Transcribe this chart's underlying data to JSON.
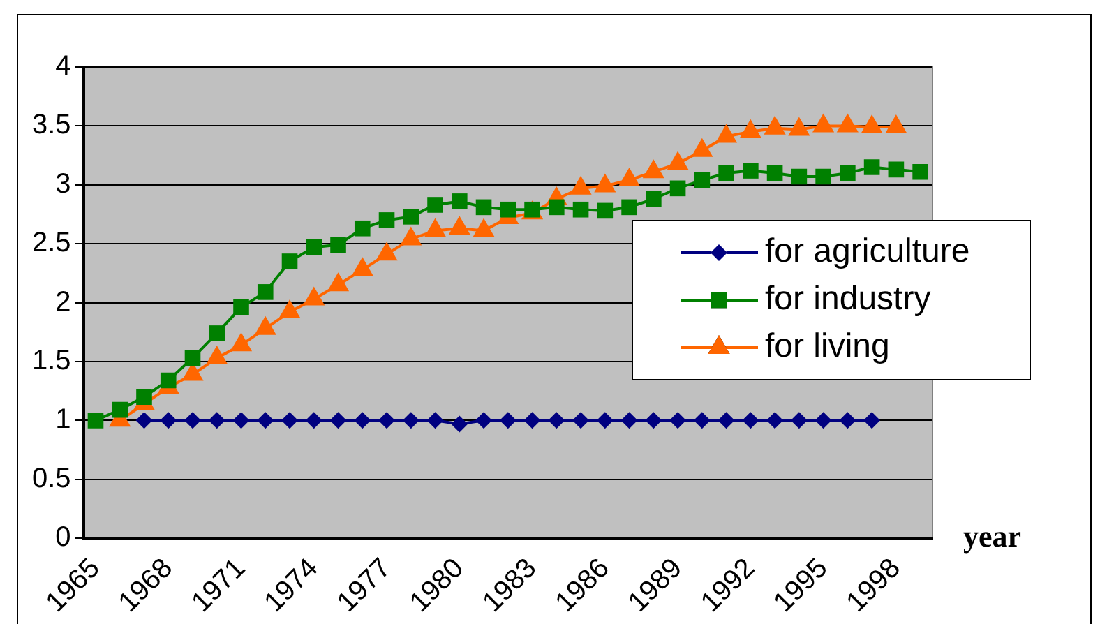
{
  "chart_data": {
    "type": "line",
    "xlabel": "year",
    "categories": [
      "1965",
      null,
      null,
      "1968",
      null,
      null,
      "1971",
      null,
      null,
      "1974",
      null,
      null,
      "1977",
      null,
      null,
      "1980",
      null,
      null,
      "1983",
      null,
      null,
      "1986",
      null,
      null,
      "1989",
      null,
      null,
      "1992",
      null,
      null,
      "1995",
      null,
      null,
      "1998",
      null
    ],
    "series": [
      {
        "name": "for agriculture",
        "color": "#000080",
        "marker": "diamond",
        "values": [
          null,
          null,
          1,
          1,
          1,
          1,
          1,
          1,
          1,
          1,
          1,
          1,
          1,
          1,
          1,
          0.97,
          1,
          1,
          1,
          1,
          1,
          1,
          1,
          1,
          1,
          1,
          1,
          1,
          1,
          1,
          1,
          1,
          1,
          null,
          null
        ]
      },
      {
        "name": "for industry",
        "color": "#008000",
        "marker": "square",
        "values": [
          1,
          1.09,
          1.2,
          1.34,
          1.53,
          1.74,
          1.96,
          2.09,
          2.35,
          2.47,
          2.49,
          2.63,
          2.7,
          2.73,
          2.83,
          2.86,
          2.81,
          2.79,
          2.79,
          2.81,
          2.79,
          2.78,
          2.81,
          2.88,
          2.97,
          3.04,
          3.1,
          3.12,
          3.1,
          3.07,
          3.07,
          3.1,
          3.15,
          3.13,
          3.11
        ]
      },
      {
        "name": "for living",
        "color": "#ff6600",
        "marker": "triangle",
        "values": [
          null,
          1,
          1.14,
          1.28,
          1.39,
          1.53,
          1.64,
          1.78,
          1.92,
          2.03,
          2.15,
          2.28,
          2.41,
          2.54,
          2.61,
          2.63,
          2.61,
          2.72,
          2.76,
          2.88,
          2.97,
          2.99,
          3.04,
          3.11,
          3.18,
          3.29,
          3.41,
          3.45,
          3.48,
          3.47,
          3.5,
          3.5,
          3.49,
          3.49,
          null
        ]
      }
    ],
    "ylim": [
      0,
      4
    ],
    "yticks": [
      0,
      0.5,
      1,
      1.5,
      2,
      2.5,
      3,
      3.5,
      4
    ],
    "grid": "y",
    "legend": "right"
  }
}
